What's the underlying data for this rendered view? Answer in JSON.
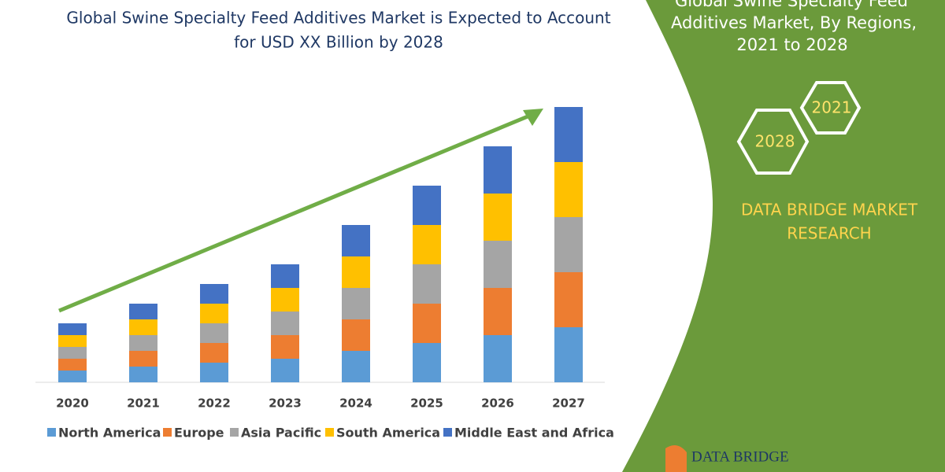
{
  "chart_data": {
    "type": "stacked-bar",
    "title": [
      "Global Swine Specialty Feed Additives Market is Expected to Account",
      "for USD XX Billion by 2028"
    ],
    "categories": [
      "2020",
      "2021",
      "2022",
      "2023",
      "2024",
      "2025",
      "2026",
      "2027"
    ],
    "series": [
      {
        "name": "North America",
        "color": "#5b9bd5",
        "values": [
          1.5,
          2,
          2.5,
          3,
          4,
          5,
          6,
          7
        ]
      },
      {
        "name": "Europe",
        "color": "#ed7d31",
        "values": [
          1.5,
          2,
          2.5,
          3,
          4,
          5,
          6,
          7
        ]
      },
      {
        "name": "Asia Pacific",
        "color": "#a5a5a5",
        "values": [
          1.5,
          2,
          2.5,
          3,
          4,
          5,
          6,
          7
        ]
      },
      {
        "name": "South America",
        "color": "#ffc000",
        "values": [
          1.5,
          2,
          2.5,
          3,
          4,
          5,
          6,
          7
        ]
      },
      {
        "name": "Middle East and Africa",
        "color": "#4472c4",
        "values": [
          1.5,
          2,
          2.5,
          3,
          4,
          5,
          6,
          7
        ]
      }
    ],
    "ylim": [
      0,
      35
    ]
  },
  "panel": {
    "heading": [
      "Global Swine Specialty Feed",
      "Additives Market, By Regions,",
      "2021 to 2028"
    ],
    "years": [
      "2021",
      "2028"
    ],
    "brand": [
      "DATA BRIDGE MARKET",
      "RESEARCH"
    ],
    "logo": "DATA BRIDGE"
  }
}
